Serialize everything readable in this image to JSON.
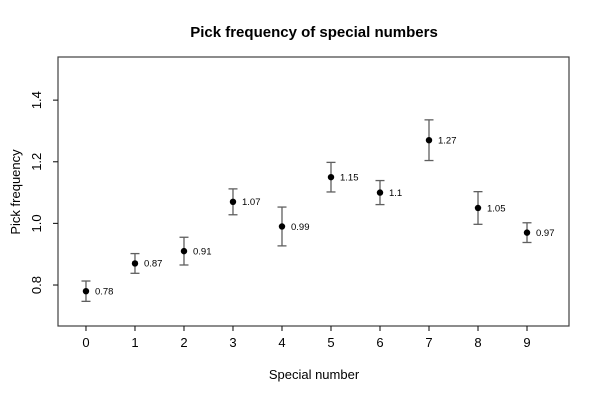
{
  "chart_data": {
    "type": "scatter",
    "title": "Pick frequency of special numbers",
    "xlabel": "Special number",
    "ylabel": "Pick frequency",
    "x": [
      0,
      1,
      2,
      3,
      4,
      5,
      6,
      7,
      8,
      9
    ],
    "y": [
      0.78,
      0.87,
      0.91,
      1.07,
      0.99,
      1.15,
      1.1,
      1.27,
      1.05,
      0.97
    ],
    "error": [
      0.033,
      0.032,
      0.045,
      0.042,
      0.063,
      0.048,
      0.039,
      0.066,
      0.053,
      0.032
    ],
    "point_labels": [
      "0.78",
      "0.87",
      "0.91",
      "1.07",
      "0.99",
      "1.15",
      "1.1",
      "1.27",
      "1.05",
      "0.97"
    ],
    "x_tick_labels": [
      "0",
      "1",
      "2",
      "3",
      "4",
      "5",
      "6",
      "7",
      "8",
      "9"
    ],
    "x_ticks": [
      0,
      1,
      2,
      3,
      4,
      5,
      6,
      7,
      8,
      9
    ],
    "y_tick_labels": [
      "0.8",
      "1.0",
      "1.2",
      "1.4"
    ],
    "y_ticks": [
      0.8,
      1.0,
      1.2,
      1.4
    ],
    "xlim": [
      -0.571,
      9.857
    ],
    "ylim": [
      0.667,
      1.54
    ],
    "grid": false,
    "legend": null,
    "colors": {
      "point": "#000000",
      "error_bar": "#5f5f5f",
      "box": "#3f3f3f",
      "axis": "#1a1a1a",
      "text": "#000000"
    }
  }
}
